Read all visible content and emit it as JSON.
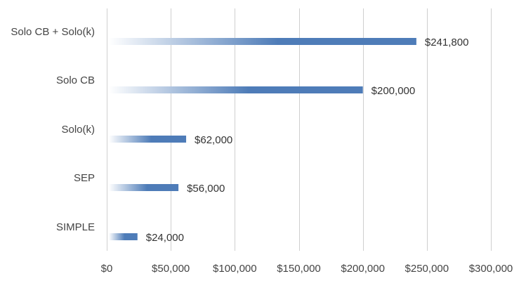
{
  "chart_data": {
    "type": "bar",
    "orientation": "horizontal",
    "categories": [
      "Solo CB + Solo(k)",
      "Solo CB",
      "Solo(k)",
      "SEP",
      "SIMPLE"
    ],
    "values": [
      241800,
      200000,
      62000,
      56000,
      24000
    ],
    "data_labels": [
      "$241,800",
      "$200,000",
      "$62,000",
      "$56,000",
      "$24,000"
    ],
    "x_ticks": [
      0,
      50000,
      100000,
      150000,
      200000,
      250000,
      300000
    ],
    "x_tick_labels": [
      "$0",
      "$50,000",
      "$100,000",
      "$150,000",
      "$200,000",
      "$250,000",
      "$300,000"
    ],
    "xlim": [
      0,
      300000
    ],
    "grid": "vertical",
    "legend": "none",
    "title": "",
    "xlabel": "",
    "ylabel": "",
    "bar_color": "#4e7cb8",
    "bar_fade_color": "#ffffff",
    "grid_color": "#cfcfcf",
    "text_color": "#444444"
  }
}
